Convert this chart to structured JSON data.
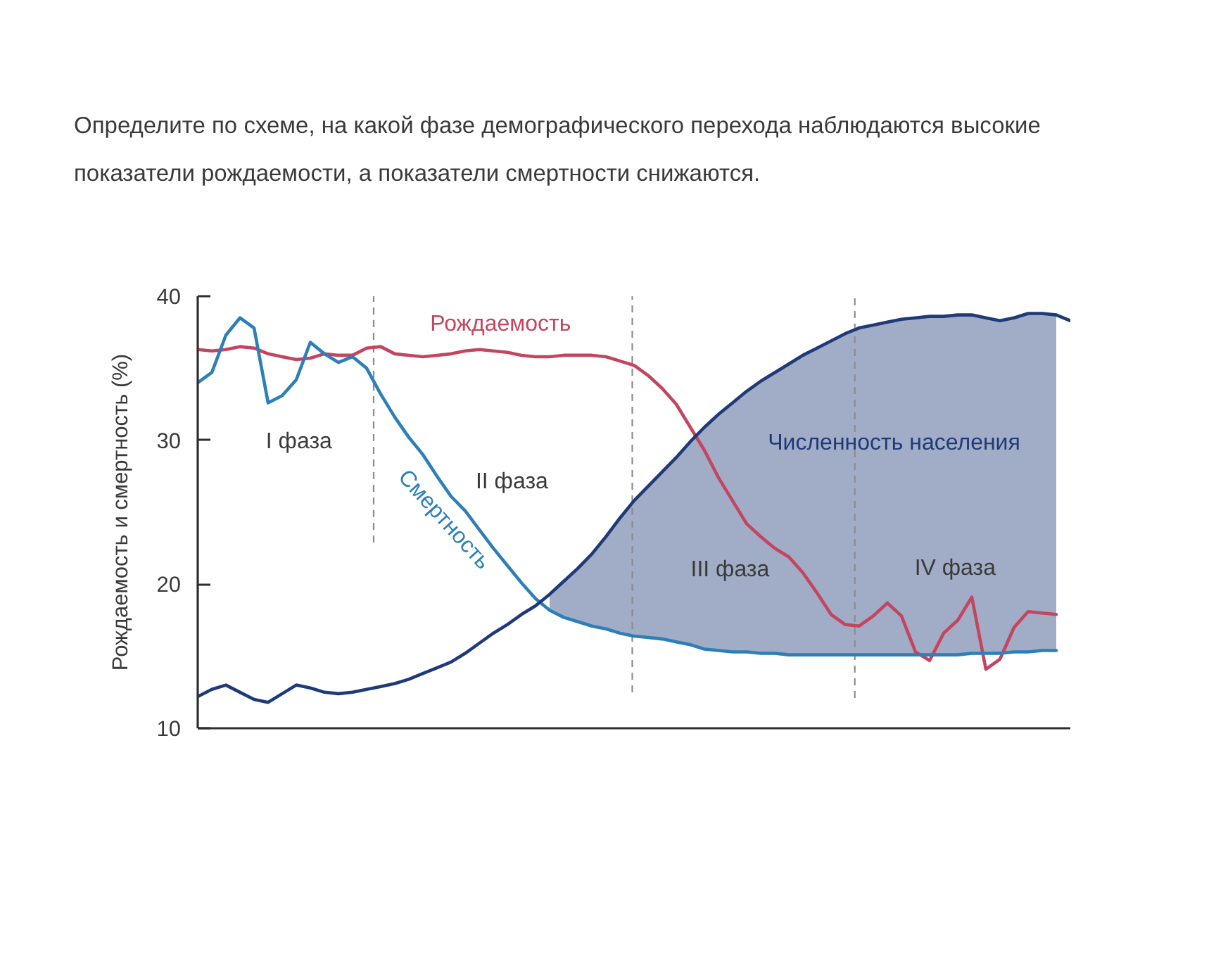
{
  "chart_data": {
    "type": "line",
    "title": "Определите по схеме, на какой фазе демографического перехода наблюдаются высокие показатели рождаемости, а показатели смертности снижаются.",
    "ylabel": "Рождаемость и смертность (%)",
    "categories": [
      null,
      null,
      null,
      null,
      null,
      null,
      null,
      null,
      null,
      null,
      null,
      null,
      null,
      null,
      null,
      null,
      null,
      null,
      null,
      null,
      null,
      null,
      null,
      null,
      null,
      null,
      null,
      null,
      null,
      null,
      null,
      null,
      null,
      null,
      null,
      null,
      null,
      null,
      null,
      null,
      null,
      null,
      null,
      null,
      null,
      null,
      null,
      null,
      null,
      null,
      null,
      null,
      null,
      null,
      null,
      null,
      null,
      null,
      null,
      null,
      null,
      null,
      null
    ],
    "ylim": [
      10,
      40
    ],
    "yticks": [
      10,
      20,
      30,
      40
    ],
    "tick_labels": "y",
    "series": [
      {
        "name": "Рождаемость",
        "color": "#c4455f",
        "values": [
          36.3,
          36.2,
          36.3,
          36.5,
          36.4,
          36.0,
          35.8,
          35.6,
          35.7,
          36.0,
          35.9,
          35.9,
          36.4,
          36.5,
          36.0,
          35.9,
          35.8,
          35.9,
          36.0,
          36.2,
          36.3,
          36.2,
          36.1,
          35.9,
          35.8,
          35.8,
          35.9,
          35.9,
          35.9,
          35.8,
          35.5,
          35.2,
          34.5,
          33.6,
          32.5,
          30.9,
          29.3,
          27.4,
          25.8,
          24.2,
          23.3,
          22.5,
          21.9,
          20.8,
          19.4,
          17.9,
          17.2,
          17.1,
          17.8,
          18.7,
          17.8,
          15.3,
          14.7,
          16.6,
          17.5,
          19.1,
          14.1,
          14.8,
          17.0,
          18.1,
          18.0,
          17.9,
          null
        ]
      },
      {
        "name": "Смертность",
        "color": "#2d7fb8",
        "values": [
          34.0,
          34.7,
          37.3,
          38.5,
          37.8,
          32.6,
          33.1,
          34.2,
          36.8,
          36.0,
          35.4,
          35.8,
          35.0,
          33.2,
          31.6,
          30.2,
          29.0,
          27.5,
          26.1,
          25.1,
          23.8,
          22.5,
          21.3,
          20.1,
          19.0,
          18.2,
          17.7,
          17.4,
          17.1,
          16.9,
          16.6,
          16.4,
          16.3,
          16.2,
          16.0,
          15.8,
          15.5,
          15.4,
          15.3,
          15.3,
          15.2,
          15.2,
          15.1,
          15.1,
          15.1,
          15.1,
          15.1,
          15.1,
          15.1,
          15.1,
          15.1,
          15.1,
          15.1,
          15.1,
          15.1,
          15.2,
          15.2,
          15.2,
          15.3,
          15.3,
          15.4,
          15.4,
          null
        ]
      },
      {
        "name": "Численность населения",
        "color": "#1f3a78",
        "values": [
          12.2,
          12.7,
          13.0,
          12.5,
          12.0,
          11.8,
          12.4,
          13.0,
          12.8,
          12.5,
          12.4,
          12.5,
          12.7,
          12.9,
          13.1,
          13.4,
          13.8,
          14.2,
          14.6,
          15.2,
          15.9,
          16.6,
          17.2,
          17.9,
          18.5,
          19.3,
          20.2,
          21.1,
          22.1,
          23.3,
          24.6,
          25.8,
          26.8,
          27.8,
          28.8,
          29.9,
          30.9,
          31.8,
          32.6,
          33.4,
          34.1,
          34.7,
          35.3,
          35.9,
          36.4,
          36.9,
          37.4,
          37.8,
          38.0,
          38.2,
          38.4,
          38.5,
          38.6,
          38.6,
          38.7,
          38.7,
          38.5,
          38.3,
          38.5,
          38.8,
          38.8,
          38.7,
          38.3
        ],
        "lower": [
          null,
          null,
          null,
          null,
          null,
          null,
          null,
          null,
          null,
          null,
          null,
          null,
          null,
          null,
          null,
          null,
          null,
          null,
          null,
          null,
          null,
          null,
          null,
          null,
          null,
          18.2,
          17.7,
          17.4,
          17.1,
          16.9,
          16.6,
          16.4,
          16.3,
          16.2,
          16.0,
          15.8,
          15.5,
          15.4,
          15.3,
          15.3,
          15.2,
          15.2,
          15.1,
          15.1,
          15.1,
          15.1,
          15.1,
          15.1,
          15.1,
          15.1,
          15.1,
          15.1,
          15.1,
          15.1,
          15.1,
          15.2,
          15.2,
          15.2,
          15.3,
          15.3,
          15.4,
          15.4,
          null
        ],
        "upper": [
          null,
          null,
          null,
          null,
          null,
          null,
          null,
          null,
          null,
          null,
          null,
          null,
          null,
          null,
          null,
          null,
          null,
          null,
          null,
          null,
          null,
          null,
          null,
          null,
          null,
          19.3,
          20.2,
          21.1,
          22.1,
          23.3,
          24.6,
          25.8,
          26.8,
          27.8,
          28.8,
          29.9,
          30.9,
          31.8,
          32.6,
          33.4,
          34.1,
          34.7,
          35.3,
          35.9,
          36.4,
          36.9,
          37.4,
          37.8,
          38.0,
          38.2,
          38.4,
          38.5,
          38.6,
          38.6,
          38.7,
          38.7,
          38.5,
          38.3,
          38.5,
          38.8,
          38.8,
          38.7,
          null
        ]
      }
    ],
    "annotations": [
      "I фаза",
      "II фаза",
      "III фаза",
      "IV фаза"
    ]
  }
}
